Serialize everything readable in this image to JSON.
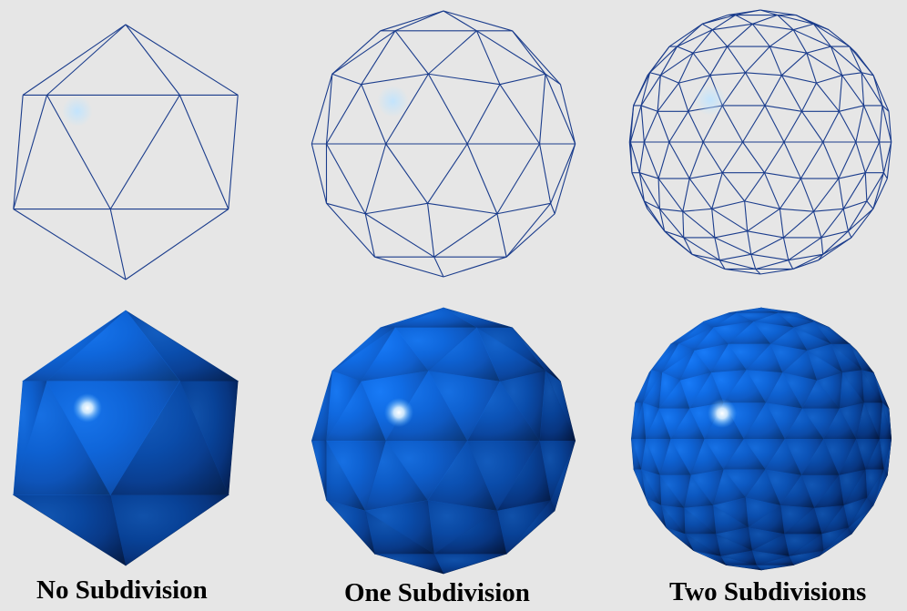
{
  "figure": {
    "background_color": "#e6e6e6",
    "wire_color": "#1a3c8c",
    "wire_highlight_color": "#9fd0ff",
    "surface_color": "#0a62d8",
    "surface_shadow_color": "#031436",
    "specular_color": "#ffffff"
  },
  "columns": [
    {
      "caption": "No Subdivision",
      "subdivisions": 0
    },
    {
      "caption": "One Subdivision",
      "subdivisions": 1
    },
    {
      "caption": "Two Subdivisions",
      "subdivisions": 2
    }
  ]
}
